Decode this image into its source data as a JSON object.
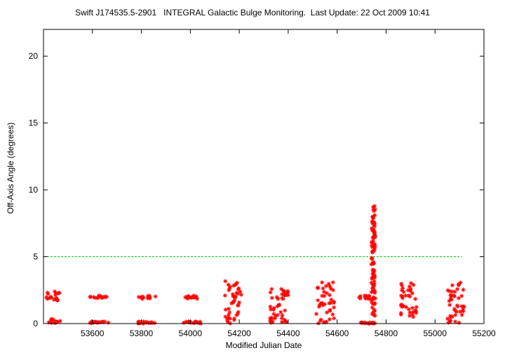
{
  "chart_data": {
    "type": "scatter",
    "title": "Swift J174535.5-2901   INTEGRAL Galactic Bulge Monitoring.  Last Update: 22 Oct 2009 10:41",
    "xlabel": "Modified Julian Date",
    "ylabel": "Off-Axis Angle (degrees)",
    "xlim": [
      53400,
      55200
    ],
    "ylim": [
      0,
      22
    ],
    "xticks": [
      53600,
      53800,
      54000,
      54200,
      54400,
      54600,
      54800,
      55000,
      55200
    ],
    "yticks": [
      0,
      5,
      10,
      15,
      20
    ],
    "grid": false,
    "reference_line": {
      "y": 5,
      "x_range": [
        53400,
        55110
      ],
      "color": "#00cc00",
      "style": "dashed"
    },
    "marker_color": "#ff0000",
    "marker": "asterisk",
    "series": [
      {
        "clusters": [
          {
            "x": [
              53405,
              53470
            ],
            "y": [
              [
                1.6,
                2.4
              ],
              [
                0.05,
                0.35
              ]
            ]
          },
          {
            "x": [
              53590,
              53665
            ],
            "y": [
              [
                1.85,
                2.1
              ],
              [
                0.0,
                0.15
              ]
            ]
          },
          {
            "x": [
              53780,
              53860
            ],
            "y": [
              [
                1.85,
                2.1
              ],
              [
                0.0,
                0.15
              ]
            ]
          },
          {
            "x": [
              53970,
              54045
            ],
            "y": [
              [
                1.85,
                2.1
              ],
              [
                0.0,
                0.15
              ]
            ]
          },
          {
            "x": [
              54140,
              54210
            ],
            "y": [
              [
                0.0,
                3.2
              ]
            ]
          },
          {
            "x": [
              54325,
              54400
            ],
            "y": [
              [
                1.8,
                2.6
              ],
              [
                0.0,
                1.5
              ]
            ]
          },
          {
            "x": [
              54510,
              54590
            ],
            "y": [
              [
                0.0,
                3.2
              ]
            ]
          },
          {
            "x": [
              54690,
              54760
            ],
            "y": [
              [
                1.85,
                2.1
              ],
              [
                0.0,
                0.1
              ]
            ]
          },
          {
            "x": [
              54740,
              54755
            ],
            "y": [
              [
                0.5,
                8.8
              ]
            ]
          },
          {
            "x": [
              54860,
              54930
            ],
            "y": [
              [
                0.5,
                3.2
              ]
            ]
          },
          {
            "x": [
              55050,
              55120
            ],
            "y": [
              [
                0.0,
                3.2
              ]
            ]
          }
        ]
      }
    ]
  }
}
